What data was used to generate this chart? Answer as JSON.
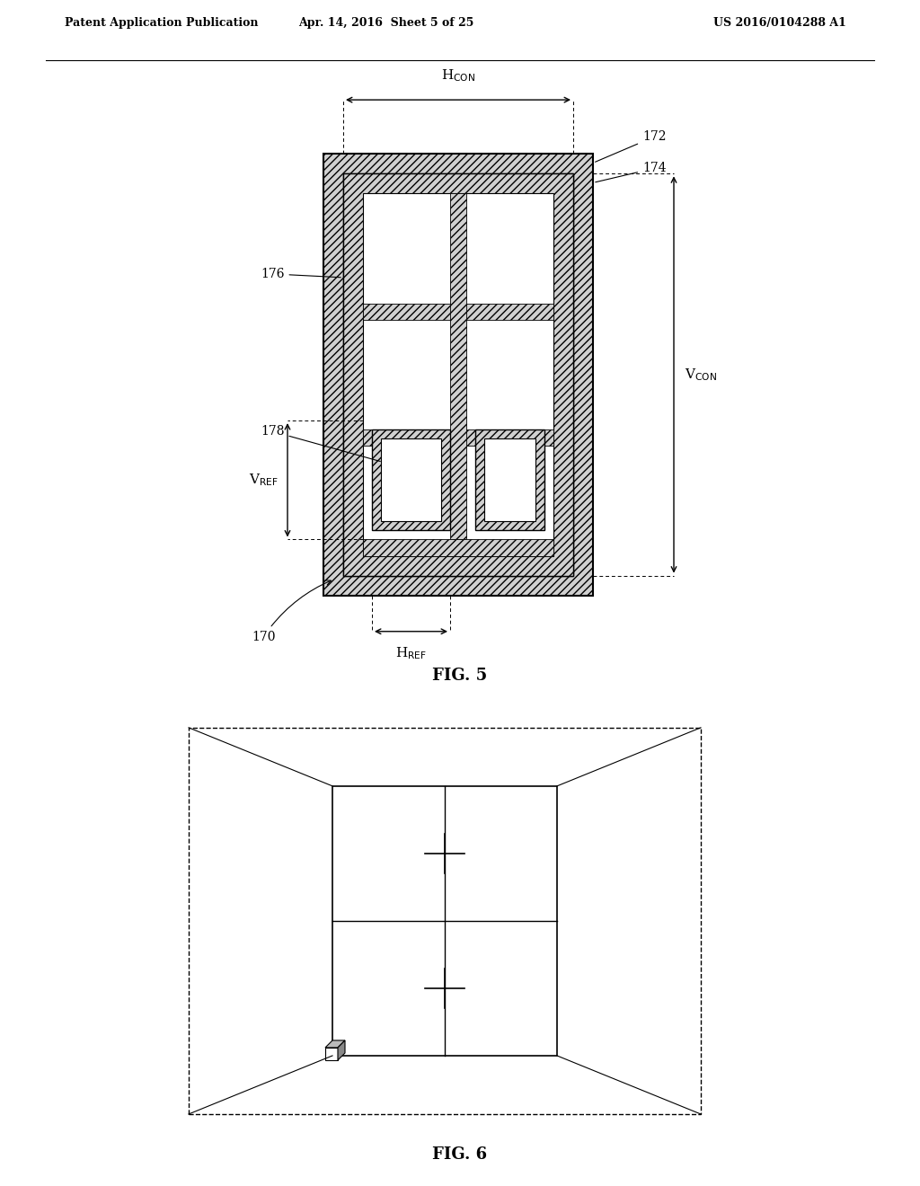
{
  "header_left": "Patent Application Publication",
  "header_mid": "Apr. 14, 2016  Sheet 5 of 25",
  "header_right": "US 2016/0104288 A1",
  "fig5_title": "FIG. 5",
  "fig6_title": "FIG. 6",
  "bg_color": "#ffffff",
  "line_color": "#000000"
}
